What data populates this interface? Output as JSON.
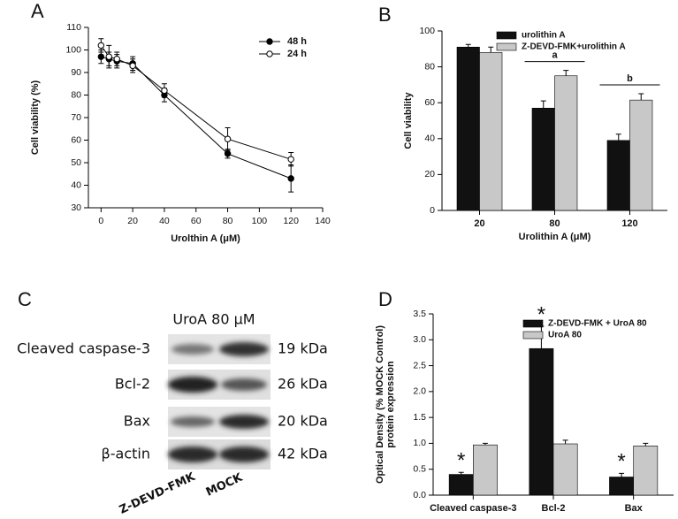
{
  "chart_data": [
    {
      "type": "line",
      "panel_label": "A",
      "xlabel": "Urolthin A (μM)",
      "ylabel": [
        "Cell viability  (%)"
      ],
      "x": [
        0,
        5,
        10,
        20,
        40,
        80,
        120
      ],
      "series": [
        {
          "name": "48 h",
          "color": "#000000",
          "marker": "filled",
          "values": [
            97,
            96,
            95,
            94,
            80,
            54,
            43
          ],
          "errors": [
            3,
            3,
            3,
            3,
            3,
            2,
            6
          ]
        },
        {
          "name": "24 h",
          "color": "#000000",
          "marker": "open",
          "values": [
            102,
            97,
            96,
            93,
            82,
            60.5,
            51.5
          ],
          "errors": [
            3,
            5,
            3,
            3,
            3,
            5,
            3
          ]
        }
      ],
      "xlim": [
        -8,
        140
      ],
      "xticks": [
        0,
        20,
        40,
        60,
        80,
        100,
        120,
        140
      ],
      "ylim": [
        30,
        110
      ],
      "yticks": [
        30,
        40,
        50,
        60,
        70,
        80,
        90,
        100,
        110
      ],
      "legend": "upper right"
    },
    {
      "type": "bar",
      "panel_label": "B",
      "xlabel": "Urolithin A (μM)",
      "ylabel": [
        "Cell viability"
      ],
      "categories": [
        "20",
        "80",
        "120"
      ],
      "series": [
        {
          "name": "urolithin A",
          "color": "#111111",
          "values": [
            91,
            57,
            39
          ],
          "errors": [
            1.5,
            4,
            3.5
          ]
        },
        {
          "name": "Z-DEVD-FMK+urolithin A",
          "color": "#c8c8c8",
          "values": [
            88,
            75,
            61.5
          ],
          "errors": [
            3,
            3,
            3.5
          ]
        }
      ],
      "group_labels": [
        null,
        "a",
        "b"
      ],
      "ylim": [
        0,
        100
      ],
      "yticks": [
        0,
        20,
        40,
        60,
        80,
        100
      ],
      "legend": "upper right"
    },
    {
      "type": "bar",
      "panel_label": "D",
      "ylabel": [
        "Optical Density (% MOCK Control)",
        "protein  expression"
      ],
      "categories": [
        "Cleaved caspase-3",
        "Bcl-2",
        "Bax"
      ],
      "series": [
        {
          "name": "Z-DEVD-FMK + UroA 80",
          "color": "#111111",
          "values": [
            0.4,
            2.83,
            0.35
          ],
          "errors": [
            0.04,
            0.43,
            0.07
          ],
          "annotations": [
            "*",
            "*",
            "*"
          ]
        },
        {
          "name": "UroA 80",
          "color": "#c8c8c8",
          "values": [
            0.97,
            0.99,
            0.95
          ],
          "errors": [
            0.03,
            0.07,
            0.05
          ]
        }
      ],
      "ylim": [
        0,
        3.5
      ],
      "yticks": [
        {
          "value": 0,
          "label": "0.0"
        },
        0.5,
        {
          "value": 1,
          "label": "1.0"
        },
        1.5,
        {
          "value": 2,
          "label": "2.0"
        },
        2.5,
        {
          "value": 3,
          "label": "3.0"
        },
        3.5
      ],
      "legend": "upper right"
    }
  ],
  "blot": {
    "panel_label": "C",
    "header": "UroA  80 μM",
    "rows": [
      {
        "label": "Cleaved caspase-3",
        "size": "19 kDa"
      },
      {
        "label": "Bcl-2",
        "size": "26 kDa"
      },
      {
        "label": "Bax",
        "size": "20 kDa"
      },
      {
        "label": "β-actin",
        "size": "42 kDa"
      }
    ],
    "lanes": [
      "Z-DEVD-FMK",
      "MOCK"
    ]
  }
}
